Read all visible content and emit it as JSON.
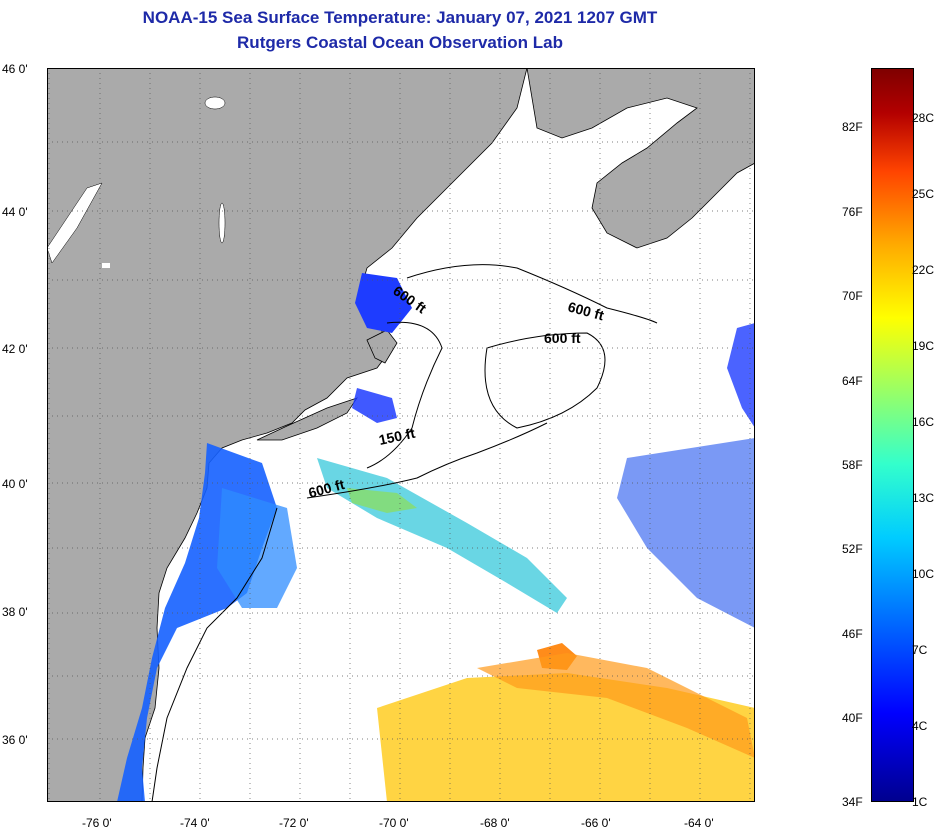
{
  "header": {
    "title": "NOAA-15 Sea Surface Temperature:  January 07, 2021 1207 GMT",
    "subtitle": "Rutgers Coastal Ocean Observation Lab"
  },
  "axes": {
    "latitudes": [
      "46 0'",
      "44 0'",
      "42 0'",
      "40 0'",
      "38 0'",
      "36 0'"
    ],
    "longitudes": [
      "-76 0'",
      "-74 0'",
      "-72 0'",
      "-70 0'",
      "-68 0'",
      "-66 0'",
      "-64 0'"
    ]
  },
  "isobaths": [
    "600 ft",
    "600 ft",
    "600 ft",
    "150 ft",
    "600 ft"
  ],
  "colorbar": {
    "fahrenheit": [
      "82F",
      "76F",
      "70F",
      "64F",
      "58F",
      "52F",
      "46F",
      "40F",
      "34F"
    ],
    "celsius": [
      "28C",
      "25C",
      "22C",
      "19C",
      "16C",
      "13C",
      "10C",
      "7C",
      "4C",
      "1C"
    ]
  },
  "colors": {
    "land": "#aaaaaa",
    "ocean": "#ffffff",
    "title": "#1e2aa8"
  }
}
